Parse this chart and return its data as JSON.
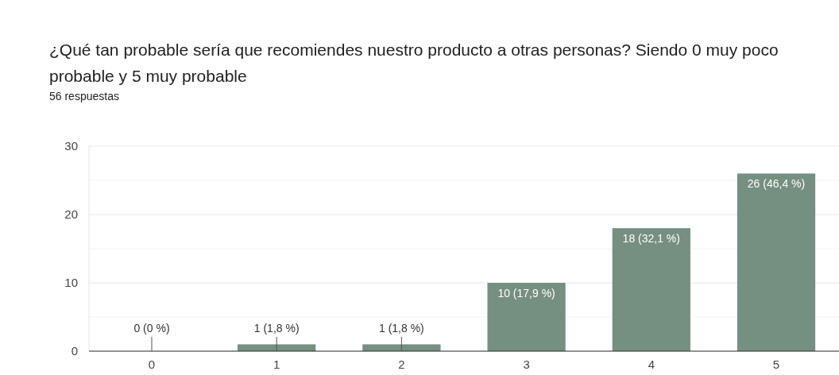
{
  "chart_data": {
    "type": "bar",
    "title": "¿Qué tan probable sería que recomiendes nuestro producto a otras personas? Siendo 0 muy poco probable y 5 muy probable",
    "subtitle": "56 respuestas",
    "categories": [
      "0",
      "1",
      "2",
      "3",
      "4",
      "5"
    ],
    "values": [
      0,
      1,
      1,
      10,
      18,
      26
    ],
    "value_labels": [
      "0 (0 %)",
      "1 (1,8 %)",
      "1 (1,8 %)",
      "10 (17,9 %)",
      "18 (32,1 %)",
      "26 (46,4 %)"
    ],
    "color": "#758f80",
    "ylim": [
      0,
      30
    ],
    "yticks": [
      0,
      {
        "value": 5,
        "label": null
      },
      10,
      {
        "value": 15,
        "label": null
      },
      20,
      {
        "value": 25,
        "label": null
      },
      30
    ],
    "grid": "y"
  }
}
